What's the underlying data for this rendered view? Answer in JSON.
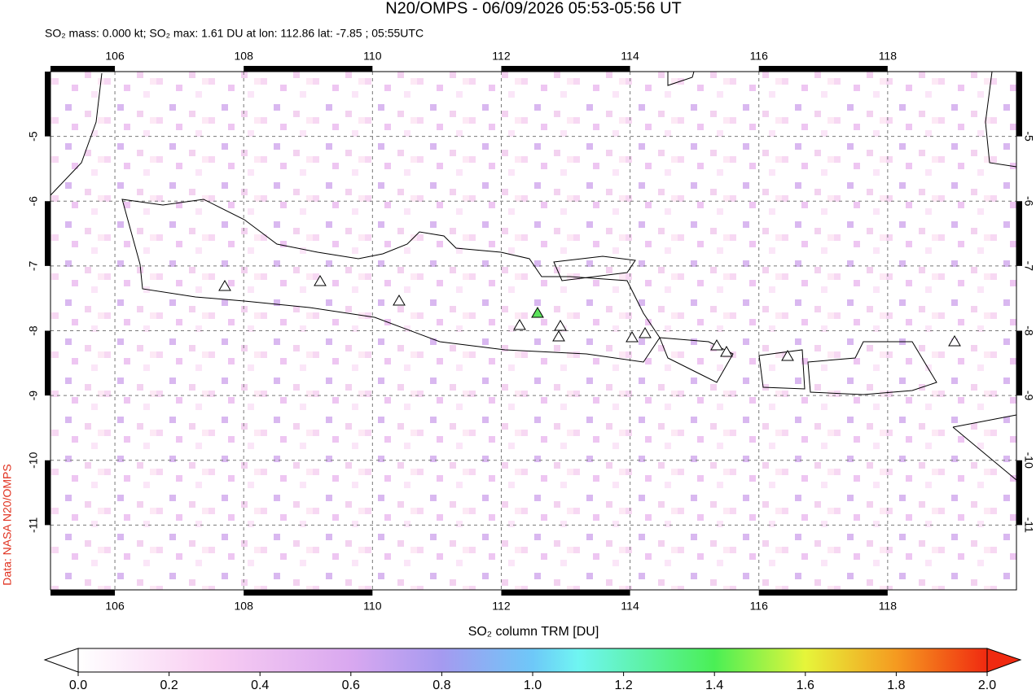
{
  "header": {
    "title": "N20/OMPS - 06/09/2026 05:53-05:56 UT",
    "subtitle": "SO₂ mass: 0.000 kt; SO₂ max: 1.61 DU at lon: 112.86 lat: -7.85 ; 05:55UTC"
  },
  "map": {
    "lon_range": [
      105,
      120
    ],
    "lat_range": [
      -4,
      -12
    ],
    "lon_ticks": [
      106,
      108,
      110,
      112,
      114,
      116,
      118
    ],
    "lat_ticks": [
      -5,
      -6,
      -7,
      -8,
      -9,
      -10,
      -11
    ],
    "credit": "Data: NASA N20/OMPS"
  },
  "colorbar": {
    "label": "SO₂ column TRM [DU]",
    "range": [
      0,
      2
    ],
    "ticks": [
      {
        "value": 0,
        "label": "0.0"
      },
      {
        "value": 0.2,
        "label": "0.2"
      },
      {
        "value": 0.4,
        "label": "0.4"
      },
      {
        "value": 0.6,
        "label": "0.6"
      },
      {
        "value": 0.8,
        "label": "0.8"
      },
      {
        "value": 1,
        "label": "1.0"
      },
      {
        "value": 1.2,
        "label": "1.2"
      },
      {
        "value": 1.4,
        "label": "1.4"
      },
      {
        "value": 1.6,
        "label": "1.6"
      },
      {
        "value": 1.8,
        "label": "1.8"
      },
      {
        "value": 2,
        "label": "2.0"
      }
    ]
  }
}
